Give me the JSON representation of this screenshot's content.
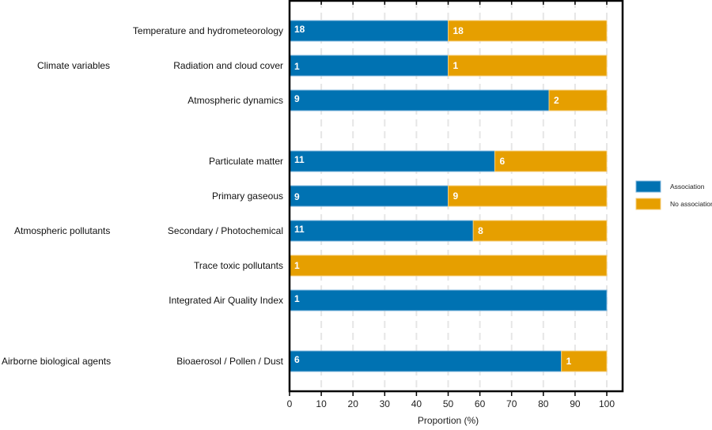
{
  "chart_data": {
    "type": "bar",
    "orientation": "horizontal",
    "stacked": true,
    "xlabel": "Proportion (%)",
    "xlim": [
      0,
      100
    ],
    "xticks": [
      0,
      10,
      20,
      30,
      40,
      50,
      60,
      70,
      80,
      90,
      100
    ],
    "grid": true,
    "legend_position": "right",
    "series": [
      {
        "name": "Association",
        "color": "#0072B2"
      },
      {
        "name": "No association",
        "color": "#E69F00"
      }
    ],
    "groups": [
      {
        "label": "Climate variables",
        "rows": [
          {
            "category": "Temperature and hydrometeorology",
            "association": 18,
            "no_association": 18,
            "association_pct": 50.0
          },
          {
            "category": "Radiation and cloud cover",
            "association": 1,
            "no_association": 1,
            "association_pct": 50.0
          },
          {
            "category": "Atmospheric dynamics",
            "association": 9,
            "no_association": 2,
            "association_pct": 81.8
          }
        ]
      },
      {
        "label": "Atmospheric pollutants",
        "rows": [
          {
            "category": "Particulate matter",
            "association": 11,
            "no_association": 6,
            "association_pct": 64.7
          },
          {
            "category": "Primary gaseous",
            "association": 9,
            "no_association": 9,
            "association_pct": 50.0
          },
          {
            "category": "Secondary / Photochemical",
            "association": 11,
            "no_association": 8,
            "association_pct": 57.9
          },
          {
            "category": "Trace toxic pollutants",
            "association": 0,
            "no_association": 1,
            "association_pct": 0
          },
          {
            "category": "Integrated Air Quality Index",
            "association": 1,
            "no_association": 0,
            "association_pct": 100
          }
        ]
      },
      {
        "label": "Airborne biological agents",
        "rows": [
          {
            "category": "Bioaerosol / Pollen / Dust",
            "association": 6,
            "no_association": 1,
            "association_pct": 85.7
          }
        ]
      }
    ]
  }
}
